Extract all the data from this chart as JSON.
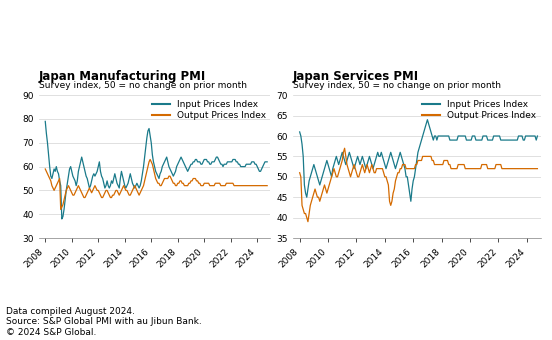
{
  "title_mfg": "Japan Manufacturing PMI",
  "title_svc": "Japan Services PMI",
  "subtitle": "Survey index, 50 = no change on prior month",
  "legend_input": "Input Prices Index",
  "legend_output": "Output Prices Index",
  "color_input": "#1a7a8a",
  "color_output": "#d46a00",
  "footnote": "Data compiled August 2024.\nSource: S&P Global PMI with au Jibun Bank.\n© 2024 S&P Global.",
  "mfg_ylim": [
    30,
    90
  ],
  "mfg_yticks": [
    30,
    40,
    50,
    60,
    70,
    80,
    90
  ],
  "svc_ylim": [
    35,
    70
  ],
  "svc_yticks": [
    35,
    40,
    45,
    50,
    55,
    60,
    65,
    70
  ],
  "xticks": [
    2008,
    2010,
    2012,
    2014,
    2016,
    2018,
    2020,
    2022,
    2024
  ],
  "xlim": [
    2007.5,
    2025.0
  ],
  "mfg_input": [
    79,
    74,
    70,
    65,
    60,
    56,
    55,
    57,
    59,
    58,
    60,
    58,
    57,
    54,
    52,
    38,
    39,
    42,
    46,
    50,
    53,
    56,
    59,
    60,
    58,
    56,
    55,
    54,
    52,
    54,
    58,
    60,
    62,
    64,
    62,
    60,
    58,
    56,
    55,
    53,
    51,
    52,
    54,
    56,
    57,
    56,
    57,
    58,
    60,
    62,
    58,
    56,
    55,
    53,
    51,
    52,
    54,
    52,
    51,
    52,
    54,
    53,
    55,
    57,
    55,
    53,
    52,
    51,
    55,
    58,
    56,
    54,
    52,
    51,
    52,
    53,
    55,
    57,
    55,
    53,
    52,
    51,
    52,
    53,
    52,
    51,
    52,
    54,
    57,
    60,
    64,
    68,
    72,
    75,
    76,
    73,
    70,
    65,
    62,
    60,
    58,
    57,
    56,
    55,
    57,
    58,
    60,
    61,
    62,
    63,
    64,
    62,
    60,
    59,
    58,
    57,
    56,
    57,
    58,
    60,
    61,
    62,
    63,
    64,
    63,
    62,
    61,
    60,
    59,
    58,
    59,
    60,
    61,
    61,
    62,
    62,
    63,
    63,
    62,
    62,
    62,
    61,
    61,
    62,
    63,
    63,
    63,
    62,
    62,
    61,
    61,
    62,
    62,
    62,
    63,
    64,
    64,
    63,
    62,
    61,
    61,
    60,
    61,
    61,
    61,
    62,
    62,
    62,
    62,
    62,
    63,
    63,
    63,
    62,
    62,
    61,
    61,
    60,
    60,
    60,
    60,
    60,
    61,
    61,
    61,
    61,
    61,
    62,
    62,
    62,
    61,
    61,
    60,
    59,
    58,
    58,
    59,
    60,
    61,
    62,
    62,
    62
  ],
  "mfg_output": [
    59,
    58,
    57,
    56,
    55,
    54,
    52,
    51,
    50,
    51,
    52,
    53,
    54,
    55,
    42,
    43,
    44,
    46,
    48,
    50,
    51,
    52,
    51,
    50,
    49,
    48,
    48,
    49,
    50,
    51,
    52,
    51,
    50,
    49,
    48,
    47,
    47,
    48,
    49,
    50,
    51,
    50,
    49,
    50,
    51,
    52,
    51,
    50,
    50,
    49,
    48,
    47,
    47,
    48,
    49,
    50,
    50,
    49,
    48,
    47,
    47,
    48,
    48,
    49,
    50,
    50,
    49,
    48,
    49,
    50,
    51,
    52,
    51,
    50,
    50,
    49,
    48,
    48,
    49,
    50,
    51,
    52,
    51,
    50,
    49,
    48,
    49,
    50,
    51,
    52,
    54,
    56,
    58,
    60,
    62,
    63,
    62,
    61,
    59,
    57,
    55,
    54,
    53,
    53,
    52,
    52,
    53,
    54,
    55,
    55,
    55,
    55,
    56,
    56,
    55,
    54,
    53,
    53,
    52,
    52,
    53,
    53,
    54,
    54,
    53,
    53,
    52,
    52,
    52,
    52,
    53,
    53,
    54,
    54,
    55,
    55,
    55,
    54,
    54,
    53,
    53,
    52,
    52,
    52,
    53,
    53,
    53,
    53,
    53,
    52,
    52,
    52,
    52,
    52,
    53,
    53,
    53,
    53,
    53,
    52,
    52,
    52,
    52,
    52,
    53,
    53,
    53,
    53,
    53,
    53,
    53,
    52,
    52,
    52,
    52,
    52,
    52,
    52,
    52,
    52,
    52,
    52,
    52,
    52,
    52,
    52,
    52,
    52,
    52,
    52,
    52,
    52,
    52,
    52,
    52,
    52,
    52,
    52,
    52,
    52,
    52,
    52
  ],
  "svc_input": [
    61,
    60,
    58,
    55,
    48,
    46,
    45,
    47,
    49,
    50,
    51,
    52,
    53,
    52,
    51,
    50,
    49,
    48,
    49,
    50,
    51,
    52,
    53,
    54,
    53,
    52,
    51,
    50,
    52,
    53,
    54,
    55,
    54,
    53,
    54,
    55,
    56,
    55,
    54,
    53,
    54,
    55,
    56,
    55,
    54,
    53,
    52,
    53,
    54,
    55,
    54,
    53,
    54,
    55,
    54,
    53,
    52,
    53,
    54,
    55,
    54,
    53,
    52,
    53,
    54,
    55,
    56,
    55,
    55,
    56,
    55,
    54,
    53,
    52,
    53,
    54,
    55,
    56,
    55,
    54,
    53,
    52,
    53,
    54,
    55,
    56,
    55,
    54,
    53,
    52,
    50,
    50,
    48,
    46,
    44,
    47,
    49,
    50,
    52,
    54,
    56,
    57,
    58,
    59,
    60,
    61,
    62,
    63,
    64,
    63,
    62,
    61,
    60,
    59,
    60,
    60,
    59,
    60,
    60,
    60,
    60,
    60,
    60,
    60,
    60,
    60,
    60,
    59,
    59,
    59,
    59,
    59,
    59,
    59,
    60,
    60,
    60,
    60,
    60,
    60,
    60,
    59,
    59,
    59,
    59,
    59,
    60,
    60,
    60,
    59,
    59,
    59,
    59,
    59,
    59,
    60,
    60,
    60,
    60,
    59,
    59,
    59,
    59,
    59,
    60,
    60,
    60,
    60,
    60,
    60,
    59,
    59,
    59,
    59,
    59,
    59,
    59,
    59,
    59,
    59,
    59,
    59,
    59,
    59,
    59,
    60,
    60,
    60,
    60,
    59,
    59,
    60,
    60,
    60,
    60,
    60,
    60,
    60,
    60,
    60,
    59,
    60
  ],
  "svc_output": [
    51,
    50,
    43,
    42,
    41,
    41,
    40,
    39,
    41,
    43,
    44,
    45,
    46,
    47,
    46,
    45,
    45,
    44,
    45,
    46,
    47,
    48,
    47,
    46,
    47,
    48,
    49,
    50,
    51,
    52,
    51,
    50,
    50,
    51,
    52,
    53,
    54,
    56,
    57,
    55,
    53,
    52,
    51,
    50,
    51,
    52,
    53,
    52,
    51,
    50,
    50,
    51,
    52,
    53,
    52,
    51,
    52,
    53,
    52,
    51,
    52,
    53,
    52,
    51,
    51,
    52,
    52,
    52,
    52,
    52,
    52,
    51,
    50,
    50,
    49,
    48,
    44,
    43,
    44,
    46,
    47,
    49,
    50,
    51,
    51,
    52,
    52,
    53,
    53,
    53,
    52,
    52,
    52,
    52,
    52,
    52,
    52,
    52,
    53,
    53,
    54,
    54,
    54,
    54,
    55,
    55,
    55,
    55,
    55,
    55,
    55,
    55,
    54,
    54,
    53,
    53,
    53,
    53,
    53,
    53,
    53,
    53,
    54,
    54,
    54,
    54,
    53,
    53,
    52,
    52,
    52,
    52,
    52,
    52,
    53,
    53,
    53,
    53,
    53,
    53,
    52,
    52,
    52,
    52,
    52,
    52,
    52,
    52,
    52,
    52,
    52,
    52,
    52,
    52,
    53,
    53,
    53,
    53,
    53,
    52,
    52,
    52,
    52,
    52,
    52,
    52,
    53,
    53,
    53,
    53,
    53,
    52,
    52,
    52,
    52,
    52,
    52,
    52,
    52,
    52,
    52,
    52,
    52,
    52,
    52,
    52,
    52,
    52,
    52,
    52,
    52,
    52,
    52,
    52,
    52,
    52,
    52,
    52,
    52,
    52,
    52,
    52
  ]
}
